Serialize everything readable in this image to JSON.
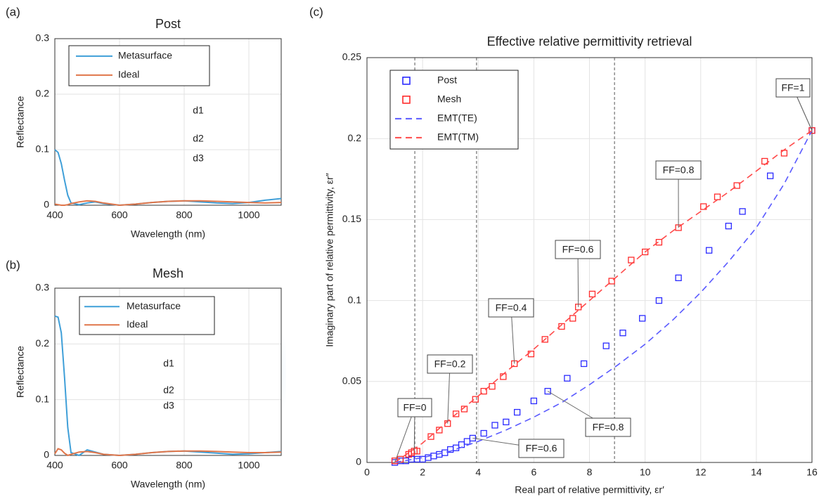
{
  "chart_data": [
    {
      "type": "line",
      "panel_label": "(a)",
      "title": "Post",
      "xlabel": "Wavelength (nm)",
      "ylabel": "Reflectance",
      "xlim": [
        400,
        1100
      ],
      "xticks": [
        400,
        600,
        800,
        1000
      ],
      "ylim": [
        0,
        0.3
      ],
      "yticks": [
        0,
        0.1,
        0.2,
        0.3
      ],
      "grid": true,
      "legend": "upper left",
      "annotations": [
        "d1",
        "d2",
        "d3"
      ],
      "series": [
        {
          "name": "Metasurface",
          "color": "#3f9fd8",
          "style": "solid",
          "x": [
            400,
            410,
            420,
            430,
            440,
            450,
            475,
            500,
            525,
            550,
            600,
            650,
            700,
            750,
            800,
            850,
            900,
            950,
            1000,
            1050,
            1100
          ],
          "values": [
            0.1,
            0.095,
            0.075,
            0.045,
            0.018,
            0.004,
            0.001,
            0.004,
            0.006,
            0.003,
            0.0,
            0.002,
            0.005,
            0.007,
            0.008,
            0.006,
            0.004,
            0.003,
            0.005,
            0.009,
            0.012
          ]
        },
        {
          "name": "Ideal",
          "color": "#e0764a",
          "style": "solid",
          "x": [
            400,
            410,
            420,
            430,
            440,
            450,
            475,
            500,
            525,
            550,
            600,
            650,
            700,
            750,
            800,
            850,
            900,
            950,
            1000,
            1050,
            1100
          ],
          "values": [
            0.002,
            0.001,
            0.0,
            0.0,
            0.001,
            0.003,
            0.006,
            0.008,
            0.007,
            0.004,
            0.0,
            0.002,
            0.005,
            0.007,
            0.008,
            0.008,
            0.007,
            0.006,
            0.005,
            0.004,
            0.005
          ]
        }
      ]
    },
    {
      "type": "line",
      "panel_label": "(b)",
      "title": "Mesh",
      "xlabel": "Wavelength (nm)",
      "ylabel": "Reflectance",
      "xlim": [
        400,
        1100
      ],
      "xticks": [
        400,
        600,
        800,
        1000
      ],
      "ylim": [
        0,
        0.3
      ],
      "yticks": [
        0,
        0.1,
        0.2,
        0.3
      ],
      "grid": true,
      "legend": "upper left",
      "annotations": [
        "d1",
        "d2",
        "d3"
      ],
      "series": [
        {
          "name": "Metasurface",
          "color": "#3f9fd8",
          "style": "solid",
          "x": [
            400,
            410,
            420,
            430,
            440,
            450,
            475,
            500,
            525,
            550,
            600,
            650,
            700,
            750,
            800,
            850,
            900,
            950,
            1000,
            1050,
            1100
          ],
          "values": [
            0.25,
            0.248,
            0.22,
            0.14,
            0.05,
            0.005,
            0.0,
            0.01,
            0.006,
            0.002,
            0.0,
            0.002,
            0.005,
            0.007,
            0.008,
            0.006,
            0.004,
            0.002,
            0.003,
            0.005,
            0.007
          ]
        },
        {
          "name": "Ideal",
          "color": "#e0764a",
          "style": "solid",
          "x": [
            400,
            410,
            420,
            430,
            440,
            450,
            475,
            500,
            525,
            550,
            600,
            650,
            700,
            750,
            800,
            850,
            900,
            950,
            1000,
            1050,
            1100
          ],
          "values": [
            0.003,
            0.012,
            0.01,
            0.004,
            0.0,
            0.002,
            0.006,
            0.007,
            0.005,
            0.002,
            0.0,
            0.002,
            0.005,
            0.007,
            0.008,
            0.008,
            0.007,
            0.006,
            0.005,
            0.005,
            0.006
          ]
        }
      ]
    },
    {
      "type": "scatter",
      "panel_label": "(c)",
      "title": "Effective relative permittivity retrieval",
      "xlabel": "Real part of relative permittivity, εr′",
      "ylabel": "Imaginary part of relative permittivity, εr″",
      "xlim": [
        0,
        16
      ],
      "xticks": [
        0,
        2,
        4,
        6,
        8,
        10,
        12,
        14,
        16
      ],
      "ylim": [
        0,
        0.25
      ],
      "yticks": [
        0,
        0.05,
        0.1,
        0.15,
        0.2,
        0.25
      ],
      "grid": true,
      "legend": "upper left",
      "vlines": [
        1.72,
        3.94,
        8.9
      ],
      "annotations": [
        "FF=1",
        "FF=0.8",
        "FF=0.6",
        "FF=0.4",
        "FF=0.2",
        "FF=0",
        "FF=0.6",
        "FF=0.8"
      ],
      "series": [
        {
          "name": "Post",
          "color": "#2b2bff",
          "style": "markers",
          "x": [
            1.0,
            1.2,
            1.4,
            1.6,
            1.8,
            2.0,
            2.2,
            2.4,
            2.6,
            2.8,
            3.0,
            3.2,
            3.4,
            3.6,
            3.8,
            4.2,
            4.6,
            5.0,
            5.4,
            6.0,
            6.5,
            7.2,
            7.8,
            8.6,
            9.2,
            9.9,
            10.5,
            11.2,
            12.3,
            13.0,
            13.5,
            14.5,
            16.0
          ],
          "values": [
            0.0,
            0.001,
            0.001,
            0.002,
            0.002,
            0.002,
            0.003,
            0.004,
            0.005,
            0.006,
            0.008,
            0.009,
            0.011,
            0.013,
            0.015,
            0.018,
            0.023,
            0.025,
            0.031,
            0.038,
            0.044,
            0.052,
            0.061,
            0.072,
            0.08,
            0.089,
            0.1,
            0.114,
            0.131,
            0.146,
            0.155,
            0.177,
            0.205
          ]
        },
        {
          "name": "Mesh",
          "color": "#ff2b2b",
          "style": "markers",
          "x": [
            1.0,
            1.2,
            1.5,
            1.6,
            1.7,
            1.8,
            2.3,
            2.6,
            2.9,
            3.2,
            3.5,
            3.9,
            4.2,
            4.5,
            4.9,
            5.3,
            5.9,
            6.4,
            7.0,
            7.4,
            7.6,
            8.1,
            8.8,
            9.5,
            10.0,
            10.5,
            11.2,
            12.1,
            12.6,
            13.3,
            14.3,
            15.0,
            16.0
          ],
          "values": [
            0.001,
            0.002,
            0.005,
            0.006,
            0.007,
            0.007,
            0.016,
            0.02,
            0.024,
            0.03,
            0.033,
            0.039,
            0.044,
            0.047,
            0.053,
            0.061,
            0.067,
            0.076,
            0.084,
            0.089,
            0.096,
            0.104,
            0.112,
            0.125,
            0.13,
            0.136,
            0.145,
            0.158,
            0.164,
            0.171,
            0.186,
            0.191,
            0.205
          ]
        },
        {
          "name": "EMT(TE)",
          "color": "#5a5aff",
          "style": "dashed",
          "x": [
            1,
            2,
            3,
            4,
            5,
            6,
            7,
            8,
            9,
            10,
            11,
            12,
            13,
            14,
            15,
            16
          ],
          "values": [
            0,
            0.003,
            0.007,
            0.013,
            0.02,
            0.028,
            0.037,
            0.048,
            0.06,
            0.073,
            0.088,
            0.105,
            0.124,
            0.145,
            0.172,
            0.205
          ]
        },
        {
          "name": "EMT(TM)",
          "color": "#ff4a4a",
          "style": "dashed",
          "x": [
            1,
            2,
            3,
            4,
            5,
            6,
            7,
            8,
            9,
            10,
            11,
            12,
            13,
            14,
            15,
            16
          ],
          "values": [
            0,
            0.012,
            0.027,
            0.041,
            0.056,
            0.07,
            0.085,
            0.1,
            0.115,
            0.13,
            0.143,
            0.155,
            0.167,
            0.18,
            0.193,
            0.205
          ]
        }
      ]
    }
  ]
}
